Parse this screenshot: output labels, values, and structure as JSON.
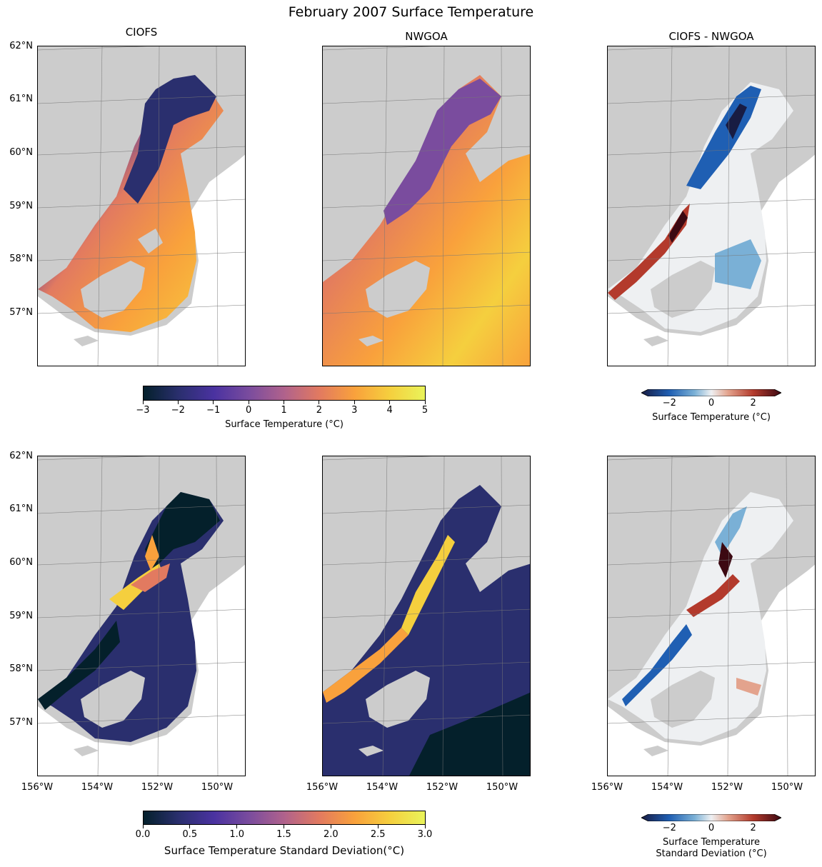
{
  "figure": {
    "title": "February 2007 Surface Temperature",
    "column_titles": [
      "CIOFS",
      "NWGOA",
      "CIOFS - NWGOA"
    ]
  },
  "map": {
    "lat_ticks": [
      "62°N",
      "61°N",
      "60°N",
      "59°N",
      "58°N",
      "57°N"
    ],
    "lon_ticks": [
      "156°W",
      "154°W",
      "152°W",
      "150°W"
    ],
    "extent": {
      "lon": [
        -156,
        -149
      ],
      "lat": [
        56,
        62
      ]
    },
    "land_color": "#cccccc",
    "ocean_color": "#ffffff"
  },
  "colorbars": {
    "temp": {
      "ticks": [
        "−3",
        "−2",
        "−1",
        "0",
        "1",
        "2",
        "3",
        "4",
        "5"
      ],
      "range": [
        -3,
        5
      ],
      "label": "Surface Temperature (°C)"
    },
    "diff_temp": {
      "ticks": [
        "−2",
        "0",
        "2"
      ],
      "label": "Surface Temperature (°C)"
    },
    "std": {
      "ticks": [
        "0.0",
        "0.5",
        "1.0",
        "1.5",
        "2.0",
        "2.5",
        "3.0"
      ],
      "range": [
        0,
        3
      ],
      "label": "Surface Temperature Standard Deviation(°C)"
    },
    "diff_std": {
      "ticks": [
        "−2",
        "0",
        "2"
      ],
      "label_line1": "Surface Temperature",
      "label_line2": "Standard Deviation (°C)"
    }
  },
  "colors": {
    "thermal": [
      "#04202b",
      "#2a2f6e",
      "#4a32a0",
      "#7a4c9e",
      "#b0628c",
      "#e27a60",
      "#f9a13c",
      "#f5cf3e",
      "#e9f35a"
    ],
    "balance": [
      "#181c43",
      "#1f5fb3",
      "#7ab0d6",
      "#eef0f2",
      "#e3a38d",
      "#b33a2c",
      "#3c0912"
    ]
  }
}
